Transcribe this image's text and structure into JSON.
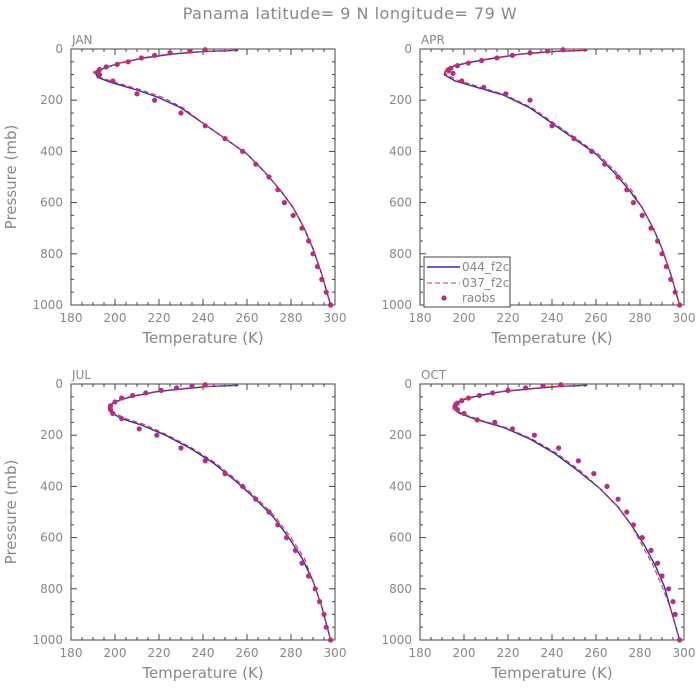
{
  "title": "Panama  latitude= 9 N longitude= 79 W",
  "colors": {
    "model_044": "#2b2bb5",
    "model_037": "#e03030",
    "obs": "#b5307a",
    "axis": "#444444",
    "text": "#888888"
  },
  "legend": {
    "panel": "APR",
    "placement": "bottom-left",
    "entries": [
      "044_f2c",
      "037_f2c",
      "raobs"
    ]
  },
  "chart_data": [
    {
      "type": "line",
      "panel_label": "JAN",
      "xlabel": "Temperature (K)",
      "ylabel": "Pressure (mb)",
      "xlim": [
        180,
        300
      ],
      "ylim": [
        1000,
        0
      ],
      "xticks": [
        180,
        200,
        220,
        240,
        260,
        280,
        300
      ],
      "yticks": [
        0,
        200,
        400,
        600,
        800,
        1000
      ],
      "series": [
        {
          "name": "044_f2c",
          "style": "solid",
          "x": [
            256,
            240,
            226,
            213,
            202,
            195,
            191,
            192,
            198,
            210,
            220,
            230,
            240,
            250,
            260,
            268,
            275,
            281,
            286,
            290,
            294,
            298
          ],
          "y": [
            5,
            10,
            20,
            35,
            55,
            75,
            90,
            110,
            130,
            160,
            190,
            230,
            290,
            350,
            410,
            480,
            550,
            620,
            700,
            780,
            880,
            1000
          ]
        },
        {
          "name": "037_f2c",
          "style": "dashed",
          "x": [
            255,
            238,
            224,
            212,
            202,
            195,
            190,
            193,
            200,
            212,
            222,
            231,
            240,
            250,
            260,
            268,
            275,
            281,
            286,
            290,
            294,
            298
          ],
          "y": [
            5,
            10,
            20,
            35,
            55,
            75,
            90,
            110,
            130,
            160,
            190,
            230,
            290,
            350,
            410,
            480,
            550,
            620,
            700,
            780,
            880,
            1000
          ]
        },
        {
          "name": "raobs",
          "style": "points",
          "x": [
            241,
            234,
            225,
            218,
            212,
            206,
            201,
            196,
            193,
            192,
            193,
            199,
            210,
            218,
            230,
            241,
            250,
            258,
            264,
            270,
            274,
            277,
            281,
            285,
            288,
            290,
            292,
            294,
            296,
            298
          ],
          "y": [
            3,
            8,
            15,
            25,
            35,
            50,
            60,
            70,
            80,
            90,
            100,
            125,
            175,
            200,
            250,
            300,
            350,
            400,
            450,
            500,
            550,
            600,
            650,
            700,
            750,
            800,
            850,
            900,
            950,
            1000
          ]
        }
      ]
    },
    {
      "type": "line",
      "panel_label": "APR",
      "xlabel": "Temperature (K)",
      "ylabel": "",
      "xlim": [
        180,
        300
      ],
      "ylim": [
        1000,
        0
      ],
      "xticks": [
        180,
        200,
        220,
        240,
        260,
        280,
        300
      ],
      "yticks": [
        0,
        200,
        400,
        600,
        800,
        1000
      ],
      "series": [
        {
          "name": "044_f2c",
          "style": "solid",
          "x": [
            256,
            240,
            226,
            214,
            204,
            196,
            192,
            191,
            196,
            206,
            218,
            230,
            240,
            250,
            260,
            268,
            275,
            281,
            286,
            290,
            294,
            298
          ],
          "y": [
            5,
            10,
            20,
            35,
            50,
            65,
            80,
            100,
            125,
            150,
            180,
            230,
            290,
            350,
            410,
            480,
            550,
            620,
            700,
            780,
            880,
            1000
          ]
        },
        {
          "name": "037_f2c",
          "style": "dashed",
          "x": [
            255,
            238,
            225,
            213,
            203,
            195,
            191,
            192,
            198,
            208,
            219,
            231,
            241,
            251,
            261,
            269,
            276,
            281,
            286,
            290,
            294,
            298
          ],
          "y": [
            5,
            10,
            20,
            35,
            50,
            65,
            80,
            100,
            125,
            150,
            180,
            230,
            290,
            350,
            410,
            480,
            550,
            620,
            700,
            780,
            880,
            1000
          ]
        },
        {
          "name": "raobs",
          "style": "points",
          "x": [
            245,
            238,
            230,
            222,
            215,
            208,
            202,
            197,
            194,
            193,
            195,
            199,
            209,
            219,
            230,
            240,
            250,
            258,
            264,
            270,
            274,
            277,
            281,
            285,
            288,
            290,
            292,
            294,
            296,
            298
          ],
          "y": [
            3,
            8,
            15,
            25,
            35,
            45,
            55,
            65,
            75,
            85,
            95,
            125,
            150,
            175,
            200,
            300,
            350,
            400,
            450,
            500,
            550,
            600,
            650,
            700,
            750,
            800,
            850,
            900,
            950,
            1000
          ]
        }
      ]
    },
    {
      "type": "line",
      "panel_label": "JUL",
      "xlabel": "Temperature (K)",
      "ylabel": "Pressure (mb)",
      "xlim": [
        180,
        300
      ],
      "ylim": [
        1000,
        0
      ],
      "xticks": [
        180,
        200,
        220,
        240,
        260,
        280,
        300
      ],
      "yticks": [
        0,
        200,
        400,
        600,
        800,
        1000
      ],
      "series": [
        {
          "name": "044_f2c",
          "style": "solid",
          "x": [
            256,
            242,
            230,
            219,
            210,
            203,
            199,
            197,
            198,
            203,
            212,
            223,
            234,
            245,
            255,
            264,
            272,
            279,
            285,
            290,
            294,
            298
          ],
          "y": [
            5,
            10,
            20,
            30,
            45,
            60,
            75,
            90,
            110,
            135,
            160,
            200,
            250,
            310,
            380,
            450,
            520,
            600,
            680,
            770,
            870,
            1000
          ]
        },
        {
          "name": "037_f2c",
          "style": "dashed",
          "x": [
            255,
            240,
            228,
            218,
            209,
            202,
            198,
            197,
            199,
            205,
            214,
            224,
            235,
            246,
            256,
            265,
            273,
            280,
            286,
            290,
            294,
            298
          ],
          "y": [
            5,
            10,
            20,
            30,
            45,
            60,
            75,
            90,
            110,
            135,
            160,
            200,
            250,
            310,
            380,
            450,
            520,
            600,
            680,
            770,
            870,
            1000
          ]
        },
        {
          "name": "raobs",
          "style": "points",
          "x": [
            241,
            235,
            228,
            221,
            214,
            208,
            203,
            200,
            198,
            198,
            199,
            203,
            211,
            219,
            230,
            241,
            250,
            258,
            264,
            270,
            274,
            278,
            282,
            285,
            288,
            291,
            293,
            295,
            296,
            298
          ],
          "y": [
            3,
            8,
            15,
            25,
            35,
            45,
            55,
            70,
            85,
            100,
            115,
            135,
            175,
            200,
            250,
            300,
            350,
            400,
            450,
            500,
            550,
            600,
            650,
            700,
            750,
            800,
            850,
            900,
            950,
            1000
          ]
        }
      ]
    },
    {
      "type": "line",
      "panel_label": "OCT",
      "xlabel": "Temperature (K)",
      "ylabel": "",
      "xlim": [
        180,
        300
      ],
      "ylim": [
        1000,
        0
      ],
      "xticks": [
        180,
        200,
        220,
        240,
        260,
        280,
        300
      ],
      "yticks": [
        0,
        200,
        400,
        600,
        800,
        1000
      ],
      "series": [
        {
          "name": "044_f2c",
          "style": "solid",
          "x": [
            256,
            242,
            229,
            217,
            207,
            200,
            196,
            195,
            198,
            206,
            218,
            230,
            241,
            252,
            262,
            270,
            276,
            282,
            287,
            291,
            294,
            298
          ],
          "y": [
            5,
            10,
            20,
            30,
            45,
            60,
            75,
            95,
            115,
            140,
            170,
            215,
            270,
            340,
            410,
            480,
            550,
            630,
            710,
            790,
            880,
            1000
          ]
        },
        {
          "name": "037_f2c",
          "style": "dashed",
          "x": [
            255,
            240,
            227,
            216,
            206,
            199,
            195,
            195,
            199,
            207,
            219,
            231,
            242,
            253,
            262,
            270,
            276,
            281,
            286,
            290,
            294,
            298
          ],
          "y": [
            5,
            10,
            20,
            30,
            45,
            60,
            75,
            95,
            115,
            140,
            170,
            215,
            270,
            340,
            410,
            480,
            550,
            630,
            710,
            790,
            880,
            1000
          ]
        },
        {
          "name": "raobs",
          "style": "points",
          "x": [
            244,
            236,
            228,
            220,
            213,
            207,
            202,
            199,
            197,
            196,
            197,
            200,
            206,
            214,
            222,
            232,
            243,
            252,
            259,
            265,
            270,
            274,
            277,
            281,
            285,
            288,
            290,
            293,
            295,
            296,
            298
          ],
          "y": [
            3,
            8,
            15,
            25,
            35,
            45,
            55,
            65,
            75,
            85,
            100,
            115,
            140,
            150,
            175,
            200,
            250,
            300,
            350,
            400,
            450,
            500,
            550,
            600,
            650,
            700,
            750,
            800,
            850,
            900,
            1000
          ]
        }
      ]
    }
  ]
}
